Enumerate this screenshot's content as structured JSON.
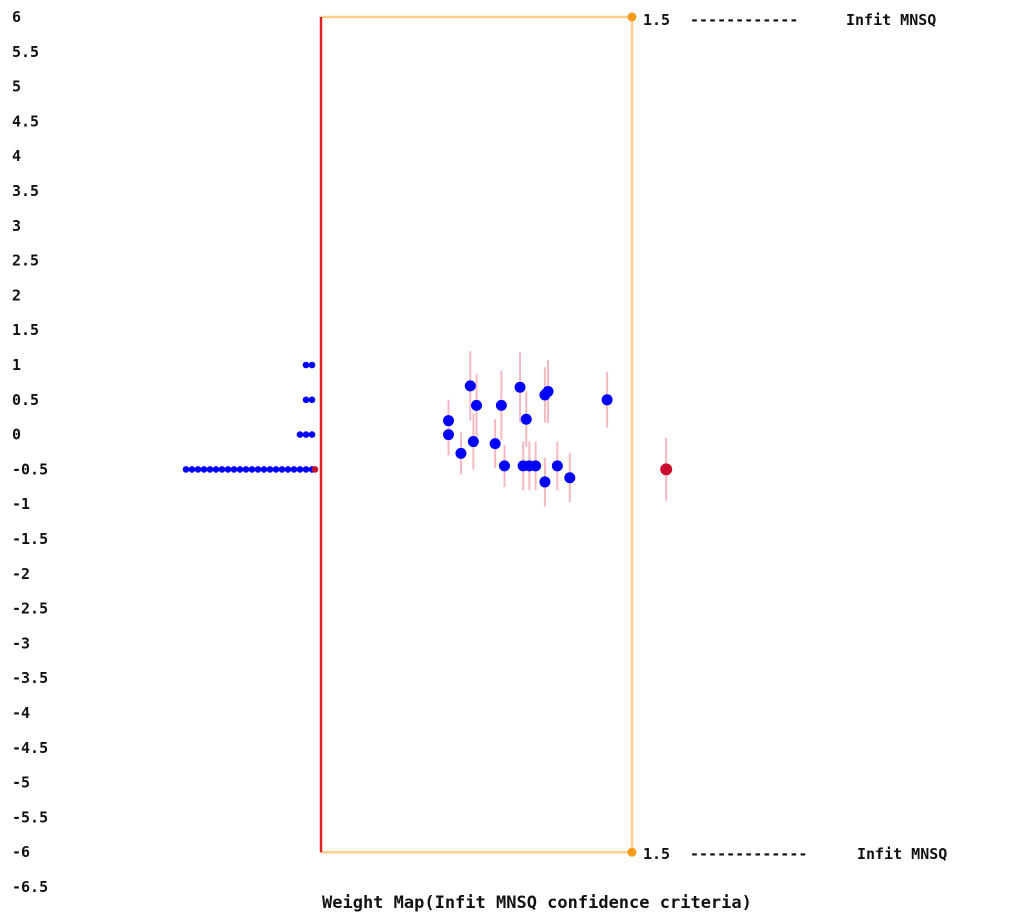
{
  "chart_data": {
    "type": "scatter",
    "title": "Weight Map(Infit MNSQ confidence criteria)",
    "ylim": [
      -6.5,
      6
    ],
    "y_ticks": [
      "6",
      "5.5",
      "5",
      "4.5",
      "4",
      "3.5",
      "3",
      "2.5",
      "2",
      "1.5",
      "1",
      "0.5",
      "0",
      "-0.5",
      "-1",
      "-1.5",
      "-2",
      "-2.5",
      "-3",
      "-3.5",
      "-4",
      "-4.5",
      "-5",
      "-5.5",
      "-6",
      "-6.5"
    ],
    "upper_bound": {
      "value": "1.5",
      "label": "Infit MNSQ",
      "dashes": "------------"
    },
    "lower_bound": {
      "value": "1.5",
      "label": "Infit MNSQ",
      "dashes": "-------------"
    },
    "distribution": [
      {
        "y": 1,
        "count": 2
      },
      {
        "y": 0.5,
        "count": 2
      },
      {
        "y": 0,
        "count": 3
      },
      {
        "y": -0.5,
        "count": 22
      }
    ],
    "distribution_mean": -0.5,
    "points": [
      {
        "x": 0.41,
        "y": 0.2,
        "err": 0.3
      },
      {
        "x": 0.41,
        "y": 0.0,
        "err": 0.3
      },
      {
        "x": 0.45,
        "y": -0.27,
        "err": 0.3
      },
      {
        "x": 0.48,
        "y": 0.7,
        "err": 0.5
      },
      {
        "x": 0.49,
        "y": -0.1,
        "err": 0.4
      },
      {
        "x": 0.5,
        "y": 0.42,
        "err": 0.45
      },
      {
        "x": 0.56,
        "y": -0.13,
        "err": 0.35
      },
      {
        "x": 0.58,
        "y": 0.42,
        "err": 0.5
      },
      {
        "x": 0.59,
        "y": -0.45,
        "err": 0.3
      },
      {
        "x": 0.64,
        "y": 0.68,
        "err": 0.5
      },
      {
        "x": 0.65,
        "y": -0.45,
        "err": 0.35
      },
      {
        "x": 0.66,
        "y": 0.22,
        "err": 0.4
      },
      {
        "x": 0.67,
        "y": -0.45,
        "err": 0.35
      },
      {
        "x": 0.69,
        "y": -0.45,
        "err": 0.35
      },
      {
        "x": 0.72,
        "y": -0.68,
        "err": 0.35
      },
      {
        "x": 0.72,
        "y": 0.57,
        "err": 0.4
      },
      {
        "x": 0.73,
        "y": 0.62,
        "err": 0.45
      },
      {
        "x": 0.76,
        "y": -0.45,
        "err": 0.35
      },
      {
        "x": 0.8,
        "y": -0.62,
        "err": 0.35
      },
      {
        "x": 0.92,
        "y": 0.5,
        "err": 0.4
      }
    ],
    "mean_point": {
      "x": 1.11,
      "y": -0.5,
      "err": 0.45
    },
    "colors": {
      "points": "#0000ff",
      "error_bars": "#f4b8c0",
      "mean": "#c8102e",
      "left_axis": "#e62020",
      "box": "#fcd08a",
      "box_marker": "#f59a1a"
    }
  }
}
